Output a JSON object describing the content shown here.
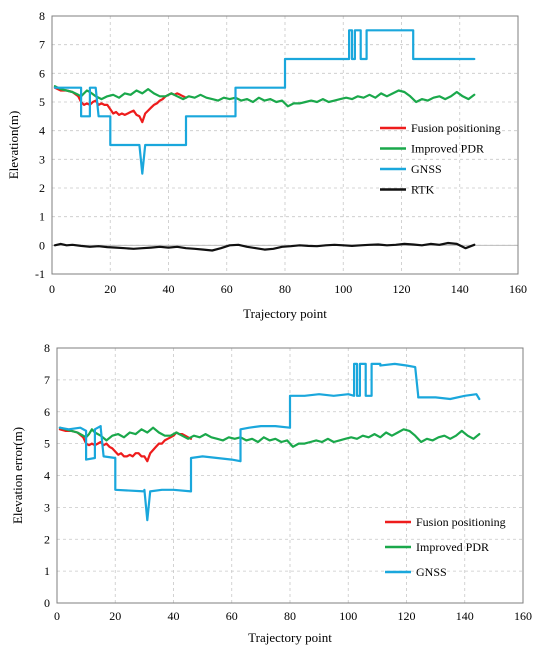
{
  "chart_data": [
    {
      "type": "line",
      "xlabel": "Trajectory point",
      "ylabel": "Elevation(m)",
      "xlim": [
        0,
        160
      ],
      "ylim": [
        -1,
        8
      ],
      "xticks": [
        0,
        20,
        40,
        60,
        80,
        100,
        120,
        140,
        160
      ],
      "yticks": [
        -1,
        0,
        1,
        2,
        3,
        4,
        5,
        6,
        7,
        8
      ],
      "grid": "dashed",
      "legend_position": "center-right",
      "series": [
        {
          "name": "Fusion positioning",
          "color": "#ee1c1c",
          "x": [
            1,
            3,
            5,
            7,
            9,
            10,
            11,
            12,
            13,
            14,
            15,
            16,
            17,
            18,
            19,
            20,
            21,
            22,
            23,
            24,
            25,
            26,
            27,
            28,
            29,
            30,
            31,
            32,
            33,
            34,
            35,
            36,
            37,
            38,
            39,
            40,
            41,
            42,
            43,
            44,
            45,
            46
          ],
          "y": [
            5.5,
            5.4,
            5.4,
            5.35,
            5.2,
            5.0,
            4.9,
            4.95,
            4.9,
            5.0,
            5.05,
            4.9,
            4.95,
            4.9,
            4.9,
            4.75,
            4.6,
            4.65,
            4.55,
            4.6,
            4.55,
            4.6,
            4.65,
            4.7,
            4.55,
            4.5,
            4.3,
            4.6,
            4.7,
            4.8,
            4.9,
            4.95,
            5.05,
            5.1,
            5.2,
            5.25,
            5.3,
            5.25,
            5.3,
            5.25,
            5.2,
            5.15
          ]
        },
        {
          "name": "Improved PDR",
          "color": "#1aa84b",
          "x": [
            1,
            3,
            5,
            7,
            9,
            10,
            11,
            12,
            13,
            15,
            17,
            19,
            21,
            23,
            25,
            27,
            29,
            31,
            33,
            35,
            37,
            39,
            41,
            43,
            45,
            47,
            49,
            51,
            53,
            55,
            57,
            59,
            61,
            63,
            65,
            67,
            69,
            71,
            73,
            75,
            77,
            79,
            81,
            83,
            85,
            87,
            89,
            91,
            93,
            95,
            97,
            99,
            101,
            103,
            105,
            107,
            109,
            111,
            113,
            115,
            117,
            119,
            121,
            123,
            125,
            127,
            129,
            131,
            133,
            135,
            137,
            139,
            141,
            143,
            145
          ],
          "y": [
            5.55,
            5.45,
            5.4,
            5.35,
            5.25,
            5.2,
            5.3,
            5.4,
            5.35,
            5.2,
            5.1,
            5.2,
            5.25,
            5.15,
            5.3,
            5.25,
            5.4,
            5.3,
            5.45,
            5.3,
            5.2,
            5.2,
            5.3,
            5.2,
            5.1,
            5.2,
            5.15,
            5.25,
            5.15,
            5.1,
            5.05,
            5.15,
            5.1,
            5.15,
            5.05,
            5.1,
            5.0,
            5.15,
            5.05,
            5.1,
            5.0,
            5.05,
            4.85,
            4.95,
            4.95,
            5.0,
            5.05,
            5.0,
            5.1,
            5.0,
            5.05,
            5.1,
            5.15,
            5.1,
            5.2,
            5.15,
            5.25,
            5.15,
            5.3,
            5.2,
            5.3,
            5.4,
            5.35,
            5.2,
            5.0,
            5.1,
            5.05,
            5.15,
            5.2,
            5.1,
            5.2,
            5.35,
            5.2,
            5.1,
            5.25
          ]
        },
        {
          "name": "GNSS",
          "color": "#1aa7dc",
          "x": [
            1,
            10,
            10,
            13,
            13,
            14,
            14,
            15,
            15,
            16,
            16,
            20,
            20,
            30,
            30,
            31,
            31,
            32,
            32,
            46,
            46,
            63,
            63,
            80,
            80,
            102,
            102,
            103,
            103,
            104,
            104,
            106,
            106,
            108,
            108,
            111,
            111,
            124,
            124,
            145
          ],
          "y": [
            5.5,
            5.5,
            4.5,
            4.5,
            5.5,
            5.5,
            5.5,
            5.5,
            5.5,
            4.5,
            4.5,
            4.5,
            3.5,
            3.5,
            3.5,
            2.5,
            2.5,
            3.5,
            3.5,
            3.5,
            4.5,
            4.5,
            5.5,
            5.5,
            6.5,
            6.5,
            7.5,
            7.5,
            6.5,
            6.5,
            7.5,
            7.5,
            6.5,
            6.5,
            7.5,
            7.5,
            7.5,
            7.5,
            6.5,
            6.5
          ]
        },
        {
          "name": "RTK",
          "color": "#111111",
          "x": [
            1,
            3,
            5,
            7,
            10,
            13,
            16,
            19,
            22,
            25,
            28,
            31,
            34,
            37,
            40,
            43,
            46,
            49,
            52,
            55,
            58,
            61,
            64,
            67,
            70,
            73,
            76,
            79,
            82,
            85,
            88,
            91,
            94,
            97,
            100,
            103,
            106,
            109,
            112,
            115,
            118,
            121,
            124,
            127,
            130,
            133,
            136,
            139,
            142,
            145
          ],
          "y": [
            0.0,
            0.05,
            0.0,
            0.02,
            -0.02,
            -0.05,
            -0.03,
            -0.06,
            -0.08,
            -0.1,
            -0.12,
            -0.1,
            -0.08,
            -0.05,
            -0.08,
            -0.05,
            -0.1,
            -0.12,
            -0.15,
            -0.18,
            -0.1,
            0.0,
            0.02,
            -0.05,
            -0.1,
            -0.15,
            -0.12,
            -0.05,
            -0.03,
            0.0,
            -0.02,
            -0.03,
            0.0,
            0.02,
            0.0,
            -0.02,
            0.0,
            0.02,
            0.03,
            0.0,
            0.02,
            0.05,
            0.03,
            0.0,
            0.05,
            0.02,
            0.08,
            0.05,
            -0.1,
            0.02
          ]
        }
      ]
    },
    {
      "type": "line",
      "xlabel": "Trajectory point",
      "ylabel": "Elevation error(m)",
      "xlim": [
        0,
        160
      ],
      "ylim": [
        0,
        8
      ],
      "xticks": [
        0,
        20,
        40,
        60,
        80,
        100,
        120,
        140,
        160
      ],
      "yticks": [
        0,
        1,
        2,
        3,
        4,
        5,
        6,
        7,
        8
      ],
      "grid": "dashed",
      "legend_position": "bottom-right",
      "series": [
        {
          "name": "Fusion positioning",
          "color": "#ee1c1c",
          "x": [
            1,
            3,
            5,
            7,
            9,
            10,
            11,
            12,
            13,
            14,
            15,
            16,
            17,
            18,
            19,
            20,
            21,
            22,
            23,
            24,
            25,
            26,
            27,
            28,
            29,
            30,
            31,
            32,
            33,
            34,
            35,
            36,
            37,
            38,
            39,
            40,
            41,
            42,
            43,
            44,
            45,
            46
          ],
          "y": [
            5.45,
            5.4,
            5.4,
            5.35,
            5.2,
            5.0,
            4.95,
            5.0,
            4.95,
            5.0,
            5.05,
            4.95,
            5.0,
            4.9,
            4.85,
            4.75,
            4.65,
            4.7,
            4.6,
            4.6,
            4.65,
            4.6,
            4.7,
            4.7,
            4.6,
            4.6,
            4.45,
            4.7,
            4.8,
            4.9,
            5.0,
            5.0,
            5.1,
            5.15,
            5.2,
            5.25,
            5.35,
            5.3,
            5.3,
            5.25,
            5.2,
            5.15
          ]
        },
        {
          "name": "Improved PDR",
          "color": "#1aa84b",
          "x": [
            1,
            3,
            5,
            7,
            9,
            10,
            11,
            12,
            13,
            15,
            17,
            19,
            21,
            23,
            25,
            27,
            29,
            31,
            33,
            35,
            37,
            39,
            41,
            43,
            45,
            47,
            49,
            51,
            53,
            55,
            57,
            59,
            61,
            63,
            65,
            67,
            69,
            71,
            73,
            75,
            77,
            79,
            81,
            83,
            85,
            87,
            89,
            91,
            93,
            95,
            97,
            99,
            101,
            103,
            105,
            107,
            109,
            111,
            113,
            115,
            117,
            119,
            121,
            123,
            125,
            127,
            129,
            131,
            133,
            135,
            137,
            139,
            141,
            143,
            145
          ],
          "y": [
            5.5,
            5.45,
            5.4,
            5.35,
            5.25,
            5.2,
            5.3,
            5.45,
            5.35,
            5.25,
            5.1,
            5.25,
            5.3,
            5.2,
            5.35,
            5.3,
            5.45,
            5.35,
            5.5,
            5.35,
            5.25,
            5.25,
            5.35,
            5.25,
            5.15,
            5.25,
            5.2,
            5.3,
            5.2,
            5.15,
            5.1,
            5.2,
            5.15,
            5.2,
            5.1,
            5.15,
            5.05,
            5.2,
            5.1,
            5.15,
            5.05,
            5.1,
            4.9,
            5.0,
            5.0,
            5.05,
            5.1,
            5.05,
            5.15,
            5.05,
            5.1,
            5.15,
            5.2,
            5.15,
            5.25,
            5.2,
            5.3,
            5.2,
            5.35,
            5.25,
            5.35,
            5.45,
            5.4,
            5.25,
            5.05,
            5.15,
            5.1,
            5.2,
            5.25,
            5.15,
            5.25,
            5.4,
            5.25,
            5.15,
            5.3
          ]
        },
        {
          "name": "GNSS",
          "color": "#1aa7dc",
          "x": [
            1,
            4,
            8,
            10,
            10,
            13,
            13,
            14,
            14,
            15,
            15,
            16,
            16,
            20,
            20,
            30,
            30,
            31,
            31,
            32,
            32,
            36,
            40,
            46,
            46,
            50,
            55,
            60,
            63,
            63,
            66,
            70,
            75,
            80,
            80,
            85,
            90,
            95,
            100,
            102,
            102,
            103,
            103,
            104,
            104,
            106,
            106,
            108,
            108,
            111,
            111,
            116,
            120,
            123,
            124,
            124,
            130,
            135,
            140,
            144,
            145
          ],
          "y": [
            5.5,
            5.45,
            5.5,
            5.4,
            4.5,
            4.55,
            5.45,
            5.5,
            5.5,
            5.55,
            5.5,
            4.6,
            4.6,
            4.55,
            3.55,
            3.5,
            3.55,
            2.6,
            2.6,
            3.5,
            3.5,
            3.55,
            3.55,
            3.5,
            4.55,
            4.6,
            4.55,
            4.5,
            4.45,
            5.45,
            5.5,
            5.55,
            5.55,
            5.5,
            6.5,
            6.5,
            6.55,
            6.5,
            6.55,
            6.5,
            7.5,
            7.5,
            6.5,
            6.5,
            7.5,
            7.5,
            6.5,
            6.5,
            7.5,
            7.5,
            7.45,
            7.5,
            7.45,
            7.4,
            6.5,
            6.45,
            6.45,
            6.4,
            6.5,
            6.55,
            6.4
          ]
        }
      ]
    }
  ]
}
